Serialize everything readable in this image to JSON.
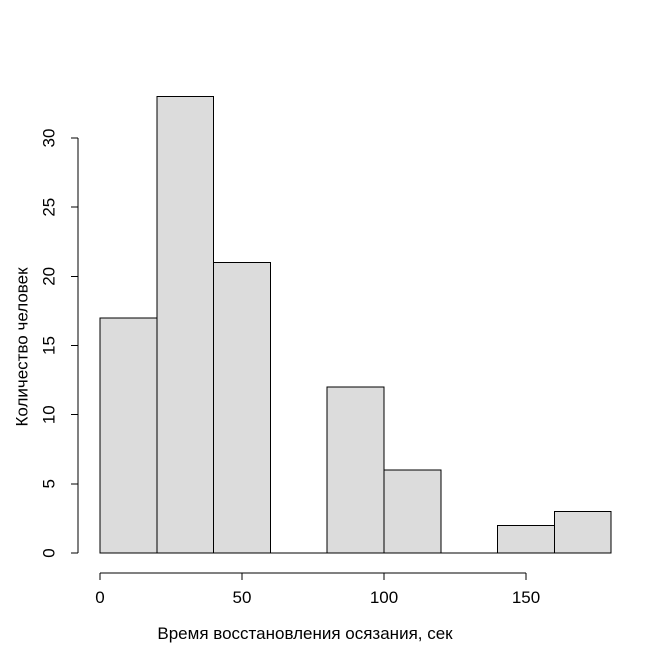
{
  "chart_data": {
    "type": "bar",
    "subtype": "histogram",
    "title": "",
    "xlabel": "Время восстановления осязания, сек",
    "ylabel": "Количество человек",
    "breaks": [
      0,
      20,
      40,
      60,
      80,
      100,
      120,
      140,
      160,
      180
    ],
    "counts": [
      17,
      33,
      21,
      0,
      12,
      6,
      0,
      2,
      3
    ],
    "x_ticks": [
      0,
      50,
      100,
      150
    ],
    "y_ticks": [
      0,
      5,
      10,
      15,
      20,
      25,
      30
    ],
    "xlim": [
      0,
      180
    ],
    "ylim": [
      0,
      33
    ],
    "grid": false,
    "legend": false,
    "bar_fill": "#DCDCDC",
    "bar_stroke": "#000000",
    "axis_color": "#000000",
    "background": "#FFFFFF"
  }
}
